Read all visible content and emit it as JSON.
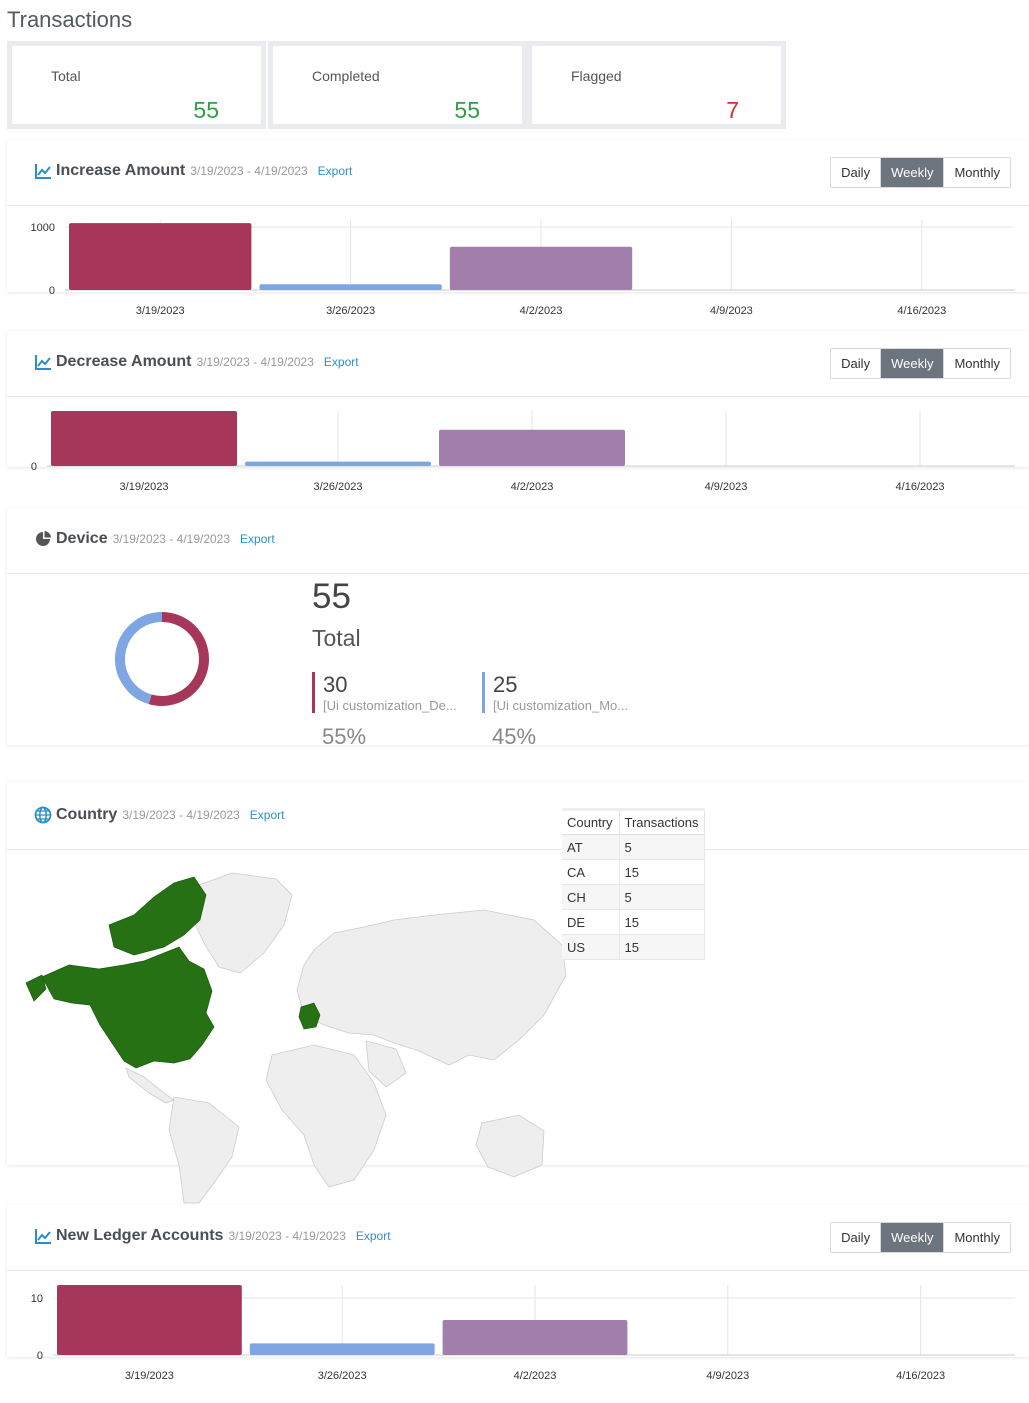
{
  "page": {
    "title": "Transactions"
  },
  "stats": [
    {
      "label": "Total",
      "value": "55"
    },
    {
      "label": "Completed",
      "value": "55"
    },
    {
      "label": "Flagged",
      "value": "7"
    }
  ],
  "colors": {
    "series_1": "#a6365a",
    "series_2": "#7ea6e2",
    "series_3": "#a27eab",
    "map_active": "#267114",
    "map_inactive": "#eeeeee",
    "positive": "#2f9e46",
    "negative": "#d0302f"
  },
  "period_buttons": {
    "daily": "Daily",
    "weekly": "Weekly",
    "monthly": "Monthly",
    "selected": "Weekly"
  },
  "increase": {
    "title": "Increase Amount",
    "range": "3/19/2023 - 4/19/2023",
    "export": "Export",
    "chart_data": {
      "type": "bar",
      "categories": [
        "3/19/2023",
        "3/26/2023",
        "4/2/2023",
        "4/9/2023",
        "4/16/2023"
      ],
      "values": [
        1050,
        90,
        680,
        0,
        0
      ],
      "yticks": [
        "1000",
        "0"
      ],
      "ylim": [
        0,
        1100
      ]
    }
  },
  "decrease": {
    "title": "Decrease Amount",
    "range": "3/19/2023 - 4/19/2023",
    "export": "Export",
    "chart_data": {
      "type": "bar",
      "categories": [
        "3/19/2023",
        "3/26/2023",
        "4/2/2023",
        "4/9/2023",
        "4/16/2023"
      ],
      "values": [
        1000,
        80,
        660,
        0,
        0
      ],
      "yticks": [
        "0"
      ],
      "ylim": [
        0,
        1000
      ]
    }
  },
  "device": {
    "title": "Device",
    "range": "3/19/2023 - 4/19/2023",
    "export": "Export",
    "total_value": "55",
    "total_label": "Total",
    "chart_data": {
      "type": "pie",
      "slices": [
        {
          "name": "[Ui customization_De...",
          "value": 30,
          "pct": "55%"
        },
        {
          "name": "[Ui customization_Mo...",
          "value": 25,
          "pct": "45%"
        }
      ]
    }
  },
  "country": {
    "title": "Country",
    "range": "3/19/2023 - 4/19/2023",
    "export": "Export",
    "table": {
      "headers": [
        "Country",
        "Transactions"
      ],
      "rows": [
        [
          "AT",
          "5"
        ],
        [
          "CA",
          "15"
        ],
        [
          "CH",
          "5"
        ],
        [
          "DE",
          "15"
        ],
        [
          "US",
          "15"
        ]
      ]
    }
  },
  "ledger": {
    "title": "New Ledger Accounts",
    "range": "3/19/2023 - 4/19/2023",
    "export": "Export",
    "chart_data": {
      "type": "bar",
      "categories": [
        "3/19/2023",
        "3/26/2023",
        "4/2/2023",
        "4/9/2023",
        "4/16/2023"
      ],
      "values": [
        12,
        2,
        6,
        0,
        0
      ],
      "yticks": [
        "10",
        "0"
      ],
      "ylim": [
        0,
        12
      ]
    }
  }
}
